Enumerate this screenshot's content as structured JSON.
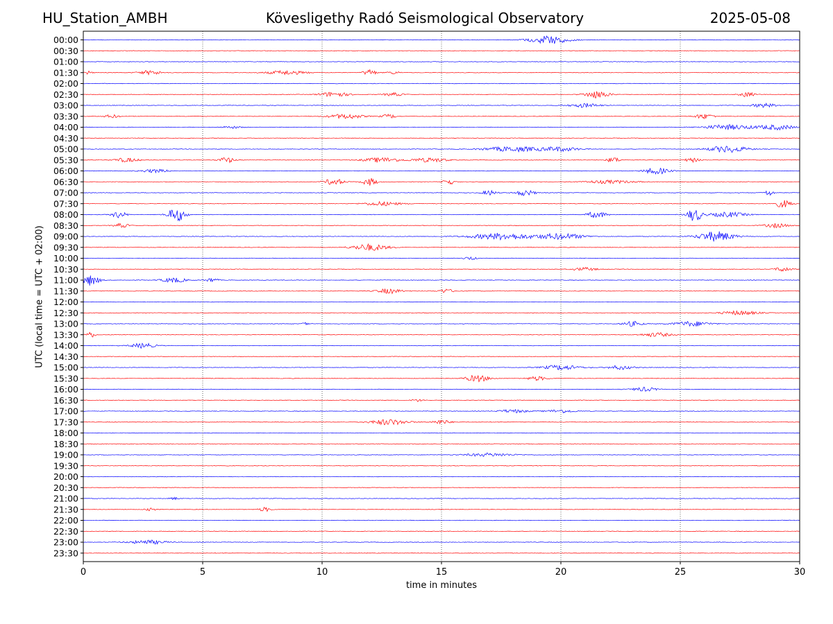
{
  "header": {
    "station": "HU_Station_AMBH",
    "observatory": "Kövesligethy Radó Seismological Observatory",
    "date": "2025-05-08"
  },
  "chart_data": {
    "type": "line",
    "title": "Kövesligethy Radó Seismological Observatory",
    "xlabel": "time in minutes",
    "ylabel": "UTC (local time = UTC + 02:00)",
    "xlim": [
      0,
      30
    ],
    "x_ticks": [
      0,
      5,
      10,
      15,
      20,
      25,
      30
    ],
    "grid": "vertical dotted at 5-minute ticks",
    "series_colors": {
      "even_row": "#0000ff",
      "odd_row": "#ff0000"
    },
    "rows": [
      {
        "label": "00:00",
        "bursts": [
          [
            19.5,
            1.6,
            1.0
          ]
        ]
      },
      {
        "label": "00:30",
        "bursts": []
      },
      {
        "label": "01:00",
        "bursts": []
      },
      {
        "label": "01:30",
        "bursts": [
          [
            0.2,
            0.3,
            0.4
          ],
          [
            2.8,
            1.0,
            0.5
          ],
          [
            8.5,
            1.6,
            0.5
          ],
          [
            12.0,
            0.5,
            0.8
          ],
          [
            13.0,
            0.6,
            0.3
          ]
        ]
      },
      {
        "label": "02:00",
        "bursts": []
      },
      {
        "label": "02:30",
        "bursts": [
          [
            10.5,
            1.2,
            0.6
          ],
          [
            13.0,
            0.8,
            0.4
          ],
          [
            21.5,
            1.0,
            0.9
          ],
          [
            27.8,
            0.6,
            0.6
          ]
        ]
      },
      {
        "label": "03:00",
        "bursts": [
          [
            21.0,
            1.2,
            0.5
          ],
          [
            28.5,
            1.0,
            0.5
          ]
        ]
      },
      {
        "label": "03:30",
        "bursts": [
          [
            1.2,
            0.6,
            0.4
          ],
          [
            11.0,
            1.4,
            0.6
          ],
          [
            12.8,
            0.6,
            0.5
          ],
          [
            26.0,
            0.8,
            0.6
          ]
        ]
      },
      {
        "label": "04:00",
        "bursts": [
          [
            6.2,
            0.8,
            0.3
          ],
          [
            27.0,
            2.0,
            0.6
          ],
          [
            29.0,
            1.5,
            0.6
          ]
        ]
      },
      {
        "label": "04:30",
        "bursts": []
      },
      {
        "label": "05:00",
        "bursts": [
          [
            18.0,
            2.5,
            0.6
          ],
          [
            20.0,
            1.5,
            0.5
          ],
          [
            27.0,
            1.6,
            0.8
          ]
        ]
      },
      {
        "label": "05:30",
        "bursts": [
          [
            1.8,
            1.0,
            0.5
          ],
          [
            6.0,
            0.6,
            0.7
          ],
          [
            12.5,
            1.5,
            0.6
          ],
          [
            14.5,
            1.5,
            0.5
          ],
          [
            22.2,
            0.5,
            0.7
          ],
          [
            25.5,
            0.6,
            0.5
          ]
        ]
      },
      {
        "label": "06:00",
        "bursts": [
          [
            3.0,
            1.2,
            0.4
          ],
          [
            24.0,
            1.0,
            0.8
          ]
        ]
      },
      {
        "label": "06:30",
        "bursts": [
          [
            10.5,
            0.8,
            0.8
          ],
          [
            12.0,
            0.6,
            0.9
          ],
          [
            15.3,
            0.4,
            0.8
          ],
          [
            22.0,
            2.0,
            0.4
          ]
        ]
      },
      {
        "label": "07:00",
        "bursts": [
          [
            17.0,
            0.6,
            0.6
          ],
          [
            18.5,
            0.8,
            0.7
          ],
          [
            28.7,
            0.4,
            0.7
          ]
        ]
      },
      {
        "label": "07:30",
        "bursts": [
          [
            12.5,
            1.5,
            0.5
          ],
          [
            29.3,
            0.7,
            0.9
          ]
        ]
      },
      {
        "label": "08:00",
        "bursts": [
          [
            1.5,
            0.6,
            0.8
          ],
          [
            3.9,
            0.7,
            1.8
          ],
          [
            21.5,
            0.8,
            0.8
          ],
          [
            25.6,
            0.6,
            1.6
          ],
          [
            27.0,
            1.5,
            0.6
          ]
        ]
      },
      {
        "label": "08:30",
        "bursts": [
          [
            1.6,
            0.6,
            0.5
          ],
          [
            29.0,
            1.0,
            0.5
          ]
        ]
      },
      {
        "label": "09:00",
        "bursts": [
          [
            17.5,
            2.5,
            0.8
          ],
          [
            20.0,
            2.0,
            0.7
          ],
          [
            26.5,
            1.5,
            1.2
          ]
        ]
      },
      {
        "label": "09:30",
        "bursts": [
          [
            12.0,
            1.5,
            0.8
          ]
        ]
      },
      {
        "label": "10:00",
        "bursts": [
          [
            16.2,
            0.5,
            0.4
          ]
        ]
      },
      {
        "label": "10:30",
        "bursts": [
          [
            21.0,
            1.0,
            0.4
          ],
          [
            29.3,
            0.6,
            0.6
          ]
        ]
      },
      {
        "label": "11:00",
        "bursts": [
          [
            0.3,
            0.7,
            1.3
          ],
          [
            3.8,
            1.0,
            0.6
          ],
          [
            5.4,
            0.5,
            0.5
          ]
        ]
      },
      {
        "label": "11:30",
        "bursts": [
          [
            12.8,
            1.0,
            0.6
          ],
          [
            15.2,
            0.6,
            0.5
          ]
        ]
      },
      {
        "label": "12:00",
        "bursts": []
      },
      {
        "label": "12:30",
        "bursts": [
          [
            27.5,
            1.5,
            0.5
          ]
        ]
      },
      {
        "label": "13:00",
        "bursts": [
          [
            9.3,
            0.2,
            0.6
          ],
          [
            23.0,
            0.8,
            0.6
          ],
          [
            25.5,
            1.5,
            0.6
          ]
        ]
      },
      {
        "label": "13:30",
        "bursts": [
          [
            0.3,
            0.4,
            0.7
          ],
          [
            24.0,
            1.2,
            0.5
          ]
        ]
      },
      {
        "label": "14:00",
        "bursts": [
          [
            2.5,
            1.0,
            0.6
          ]
        ]
      },
      {
        "label": "14:30",
        "bursts": []
      },
      {
        "label": "15:00",
        "bursts": [
          [
            20.0,
            1.5,
            0.6
          ],
          [
            22.5,
            1.0,
            0.5
          ]
        ]
      },
      {
        "label": "15:30",
        "bursts": [
          [
            16.5,
            1.0,
            0.8
          ],
          [
            19.0,
            0.8,
            0.5
          ]
        ]
      },
      {
        "label": "16:00",
        "bursts": [
          [
            23.5,
            1.0,
            0.5
          ]
        ]
      },
      {
        "label": "16:30",
        "bursts": [
          [
            14.0,
            0.5,
            0.3
          ]
        ]
      },
      {
        "label": "17:00",
        "bursts": [
          [
            18.0,
            1.2,
            0.4
          ],
          [
            20.0,
            1.2,
            0.4
          ]
        ]
      },
      {
        "label": "17:30",
        "bursts": [
          [
            12.8,
            1.5,
            0.7
          ],
          [
            15.0,
            0.8,
            0.5
          ]
        ]
      },
      {
        "label": "18:00",
        "bursts": []
      },
      {
        "label": "18:30",
        "bursts": []
      },
      {
        "label": "19:00",
        "bursts": [
          [
            17.0,
            2.0,
            0.4
          ]
        ]
      },
      {
        "label": "19:30",
        "bursts": []
      },
      {
        "label": "20:00",
        "bursts": []
      },
      {
        "label": "20:30",
        "bursts": []
      },
      {
        "label": "21:00",
        "bursts": [
          [
            3.8,
            0.4,
            0.3
          ]
        ]
      },
      {
        "label": "21:30",
        "bursts": [
          [
            7.6,
            0.5,
            0.5
          ],
          [
            2.8,
            0.5,
            0.3
          ]
        ]
      },
      {
        "label": "22:00",
        "bursts": []
      },
      {
        "label": "22:30",
        "bursts": []
      },
      {
        "label": "23:00",
        "bursts": [
          [
            2.7,
            1.5,
            0.5
          ]
        ]
      },
      {
        "label": "23:30",
        "bursts": []
      }
    ]
  }
}
